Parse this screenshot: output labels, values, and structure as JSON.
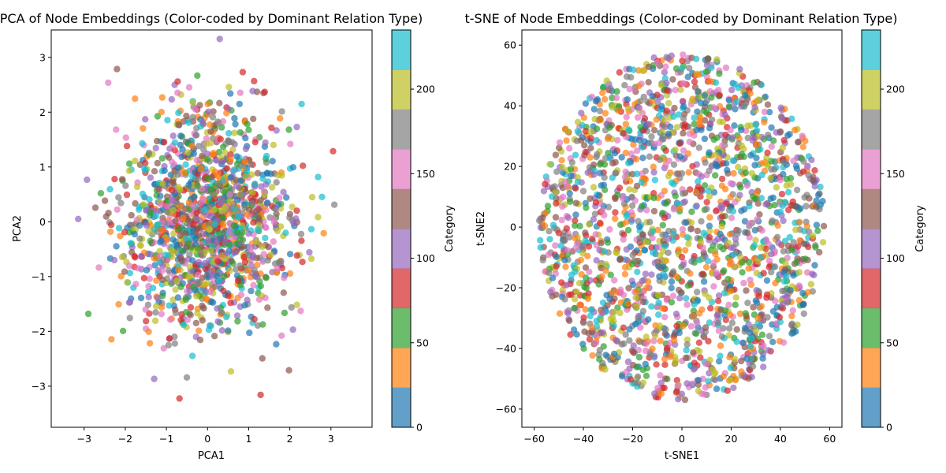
{
  "chart_data": [
    {
      "type": "scatter",
      "title": "PCA of Node Embeddings (Color-coded by Dominant Relation Type)",
      "xlabel": "PCA1",
      "ylabel": "PCA2",
      "xlim": [
        -3.8,
        4.0
      ],
      "ylim": [
        -3.75,
        3.5
      ],
      "xticks": [
        -3,
        -2,
        -1,
        0,
        1,
        2,
        3
      ],
      "yticks": [
        -3,
        -2,
        -1,
        0,
        1,
        2,
        3
      ],
      "point_count": 1500,
      "distribution": {
        "shape": "gaussian",
        "center": [
          0,
          0
        ],
        "std": [
          1,
          1
        ]
      },
      "colorbar": {
        "label": "Category",
        "range": [
          0,
          235
        ],
        "ticks": [
          0,
          50,
          100,
          150,
          200
        ]
      },
      "categories_colors": [
        "#1f77b4",
        "#ff7f0e",
        "#2ca02c",
        "#d62728",
        "#9467bd",
        "#8c564b",
        "#e377c2",
        "#7f7f7f",
        "#bcbd22",
        "#17becf"
      ],
      "point_alpha": 0.7,
      "grid": false
    },
    {
      "type": "scatter",
      "title": "t-SNE of Node Embeddings (Color-coded by Dominant Relation Type)",
      "xlabel": "t-SNE1",
      "ylabel": "t-SNE2",
      "xlim": [
        -65,
        65
      ],
      "ylim": [
        -66,
        65
      ],
      "xticks": [
        -60,
        -40,
        -20,
        0,
        20,
        40,
        60
      ],
      "yticks": [
        -60,
        -40,
        -20,
        0,
        20,
        40,
        60
      ],
      "point_count": 2000,
      "distribution": {
        "shape": "disk",
        "center": [
          0,
          0
        ],
        "radius": [
          58,
          57
        ]
      },
      "colorbar": {
        "label": "Category",
        "range": [
          0,
          235
        ],
        "ticks": [
          0,
          50,
          100,
          150,
          200
        ]
      },
      "categories_colors": [
        "#1f77b4",
        "#ff7f0e",
        "#2ca02c",
        "#d62728",
        "#9467bd",
        "#8c564b",
        "#e377c2",
        "#7f7f7f",
        "#bcbd22",
        "#17becf"
      ],
      "point_alpha": 0.7,
      "grid": false
    }
  ]
}
